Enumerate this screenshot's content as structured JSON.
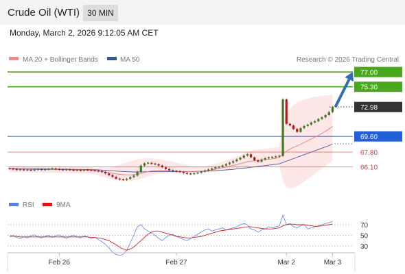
{
  "header": {
    "title": "Crude Oil (WTI)",
    "interval": "30 MIN"
  },
  "timestamp": "Monday, March 2, 2026 9:12:05 AM CET",
  "legend": {
    "ma20": {
      "label": "MA 20 + Bollinger Bands",
      "color": "#f28b8b"
    },
    "ma50": {
      "label": "MA 50",
      "color": "#2f5597"
    },
    "credit": "Research © 2026 Trading Central",
    "rsi": {
      "label": "RSI",
      "color": "#5b7fd6"
    },
    "rsi_ma": {
      "label": "9MA",
      "color": "#e01010"
    }
  },
  "chart_data": [
    {
      "type": "candlestick",
      "title": "",
      "x_tick_labels": [
        "Feb 26",
        "Feb 27",
        "Mar 2",
        "Mar 3"
      ],
      "levels": [
        {
          "value": 77.0,
          "label": "77.00",
          "kind": "resistance",
          "color": "#4aa81e"
        },
        {
          "value": 75.3,
          "label": "75.30",
          "kind": "resistance",
          "color": "#4aa81e"
        },
        {
          "value": 72.98,
          "label": "72.98",
          "kind": "last price",
          "color": "#333333"
        },
        {
          "value": 69.6,
          "label": "69.60",
          "kind": "pivot",
          "color": "#2160d8"
        },
        {
          "value": 67.8,
          "label": "67.80",
          "kind": "support",
          "color": "#e23b3b"
        },
        {
          "value": 66.1,
          "label": "66.10",
          "kind": "support",
          "color": "#e23b3b"
        }
      ],
      "closes": [
        65.88,
        65.82,
        65.76,
        65.8,
        65.73,
        65.75,
        65.7,
        65.78,
        65.82,
        65.76,
        65.8,
        65.86,
        65.9,
        65.84,
        65.78,
        65.75,
        65.8,
        65.74,
        65.7,
        65.72,
        65.68,
        65.75,
        65.72,
        65.7,
        65.66,
        65.6,
        65.52,
        65.35,
        65.15,
        64.95,
        64.75,
        64.65,
        64.6,
        64.72,
        64.92,
        65.1,
        65.55,
        66.25,
        66.5,
        66.55,
        66.45,
        66.4,
        66.25,
        66.05,
        65.85,
        65.7,
        65.62,
        65.58,
        65.52,
        65.4,
        65.3,
        65.28,
        65.36,
        65.42,
        65.55,
        65.68,
        65.8,
        65.92,
        66.05,
        66.1,
        66.25,
        66.42,
        66.58,
        66.75,
        66.95,
        67.15,
        67.4,
        67.55,
        67.2,
        66.85,
        66.7,
        66.95,
        67.1,
        67.18,
        67.22,
        67.3,
        67.35,
        73.85,
        71.05,
        70.85,
        70.45,
        70.12,
        70.55,
        70.8,
        70.95,
        71.2,
        71.35,
        71.6,
        71.8,
        72.05,
        72.4,
        72.98
      ],
      "ma20": [
        65.85,
        65.85,
        65.84,
        65.84,
        65.83,
        65.82,
        65.81,
        65.8,
        65.8,
        65.79,
        65.79,
        65.79,
        65.79,
        65.78,
        65.78,
        65.77,
        65.77,
        65.76,
        65.75,
        65.74,
        65.73,
        65.72,
        65.71,
        65.69,
        65.66,
        65.62,
        65.57,
        65.51,
        65.44,
        65.37,
        65.3,
        65.24,
        65.2,
        65.18,
        65.18,
        65.2,
        65.26,
        65.35,
        65.45,
        65.55,
        65.63,
        65.69,
        65.72,
        65.72,
        65.7,
        65.67,
        65.63,
        65.6,
        65.58,
        65.56,
        65.55,
        65.55,
        65.56,
        65.58,
        65.61,
        65.65,
        65.7,
        65.76,
        65.83,
        65.91,
        66.0,
        66.09,
        66.18,
        66.27,
        66.37,
        66.48,
        66.59,
        66.69,
        66.76,
        66.81,
        66.84,
        66.88,
        66.92,
        66.97,
        67.02,
        67.09,
        67.16,
        67.6,
        67.9,
        68.15,
        68.35,
        68.5,
        68.7,
        68.9,
        69.1,
        69.3,
        69.5,
        69.72,
        69.95,
        70.2,
        70.45,
        70.75
      ],
      "bb_upper": [
        66.2,
        66.2,
        66.19,
        66.18,
        66.17,
        66.16,
        66.15,
        66.14,
        66.13,
        66.12,
        66.12,
        66.11,
        66.11,
        66.1,
        66.1,
        66.09,
        66.09,
        66.08,
        66.07,
        66.06,
        66.05,
        66.04,
        66.03,
        66.02,
        66.0,
        65.98,
        65.97,
        65.97,
        66.0,
        66.08,
        66.2,
        66.35,
        66.5,
        66.62,
        66.72,
        66.82,
        66.95,
        67.05,
        67.1,
        67.1,
        67.08,
        67.05,
        67.0,
        66.92,
        66.84,
        66.76,
        66.68,
        66.6,
        66.5,
        66.4,
        66.3,
        66.2,
        66.15,
        66.12,
        66.12,
        66.15,
        66.22,
        66.32,
        66.45,
        66.58,
        66.72,
        66.85,
        66.98,
        67.12,
        67.28,
        67.45,
        67.62,
        67.8,
        67.95,
        68.05,
        68.1,
        68.15,
        68.2,
        68.25,
        68.3,
        68.35,
        68.4,
        71.0,
        72.2,
        72.8,
        73.2,
        73.5,
        73.7,
        73.85,
        73.95,
        74.05,
        74.15,
        74.2,
        74.25,
        74.3,
        74.35,
        74.45
      ],
      "bb_lower": [
        65.5,
        65.5,
        65.49,
        65.48,
        65.47,
        65.46,
        65.45,
        65.44,
        65.43,
        65.42,
        65.42,
        65.41,
        65.41,
        65.4,
        65.4,
        65.39,
        65.39,
        65.38,
        65.37,
        65.36,
        65.35,
        65.34,
        65.32,
        65.28,
        65.22,
        65.12,
        65.0,
        64.88,
        64.76,
        64.66,
        64.58,
        64.52,
        64.48,
        64.46,
        64.48,
        64.52,
        64.6,
        64.72,
        64.86,
        65.0,
        65.12,
        65.22,
        65.3,
        65.35,
        65.38,
        65.4,
        65.4,
        65.4,
        65.4,
        65.4,
        65.4,
        65.4,
        65.4,
        65.4,
        65.42,
        65.45,
        65.48,
        65.52,
        65.56,
        65.6,
        65.64,
        65.68,
        65.72,
        65.76,
        65.8,
        65.84,
        65.88,
        65.92,
        65.96,
        66.0,
        66.04,
        66.08,
        66.12,
        66.16,
        66.2,
        66.24,
        66.3,
        64.5,
        63.8,
        63.6,
        63.7,
        63.9,
        64.1,
        64.4,
        64.7,
        65.0,
        65.3,
        65.6,
        65.9,
        66.2,
        66.5,
        66.8
      ],
      "ma50": [
        65.9,
        65.9,
        65.9,
        65.89,
        65.89,
        65.88,
        65.88,
        65.87,
        65.87,
        65.86,
        65.86,
        65.85,
        65.85,
        65.84,
        65.84,
        65.83,
        65.83,
        65.82,
        65.82,
        65.81,
        65.81,
        65.8,
        65.79,
        65.78,
        65.77,
        65.75,
        65.73,
        65.71,
        65.68,
        65.65,
        65.62,
        65.59,
        65.57,
        65.55,
        65.53,
        65.52,
        65.52,
        65.52,
        65.53,
        65.54,
        65.55,
        65.55,
        65.55,
        65.55,
        65.55,
        65.55,
        65.55,
        65.55,
        65.55,
        65.55,
        65.55,
        65.55,
        65.56,
        65.57,
        65.58,
        65.6,
        65.62,
        65.64,
        65.66,
        65.69,
        65.72,
        65.75,
        65.78,
        65.82,
        65.86,
        65.9,
        65.95,
        66.0,
        66.05,
        66.1,
        66.15,
        66.2,
        66.25,
        66.3,
        66.35,
        66.4,
        66.45,
        66.6,
        66.75,
        66.9,
        67.05,
        67.2,
        67.35,
        67.5,
        67.65,
        67.8,
        67.95,
        68.1,
        68.25,
        68.4,
        68.55,
        68.75
      ]
    },
    {
      "type": "line",
      "title": "",
      "y_ticks": [
        70,
        50,
        30
      ],
      "ylim": [
        10,
        90
      ],
      "series": [
        {
          "name": "RSI",
          "values": [
            48,
            50,
            46,
            44,
            47,
            45,
            49,
            51,
            47,
            45,
            48,
            50,
            46,
            49,
            51,
            47,
            44,
            48,
            50,
            47,
            45,
            49,
            47,
            44,
            46,
            42,
            38,
            33,
            26,
            18,
            14,
            12,
            14,
            22,
            36,
            50,
            66,
            70,
            62,
            58,
            54,
            50,
            44,
            40,
            46,
            50,
            52,
            48,
            45,
            42,
            40,
            44,
            48,
            52,
            56,
            60,
            62,
            58,
            60,
            62,
            64,
            60,
            62,
            64,
            66,
            70,
            72,
            70,
            62,
            60,
            56,
            60,
            62,
            66,
            64,
            66,
            68,
            88,
            70,
            72,
            66,
            64,
            68,
            70,
            62,
            64,
            66,
            68,
            70,
            72,
            74,
            76
          ]
        },
        {
          "name": "9MA",
          "values": [
            48,
            48,
            48,
            47,
            47,
            47,
            47,
            47,
            47,
            47,
            47,
            47,
            47,
            47,
            47,
            47,
            47,
            47,
            47,
            47,
            47,
            47,
            47,
            46,
            46,
            45,
            44,
            42,
            40,
            36,
            32,
            28,
            24,
            22,
            24,
            28,
            34,
            40,
            46,
            52,
            56,
            58,
            58,
            56,
            54,
            52,
            50,
            48,
            47,
            46,
            45,
            45,
            46,
            47,
            48,
            50,
            52,
            54,
            56,
            58,
            59,
            60,
            61,
            62,
            63,
            64,
            65,
            66,
            66,
            65,
            64,
            63,
            62,
            62,
            62,
            63,
            64,
            68,
            70,
            71,
            71,
            70,
            70,
            70,
            69,
            68,
            67,
            67,
            68,
            69,
            70,
            71
          ]
        }
      ]
    }
  ]
}
